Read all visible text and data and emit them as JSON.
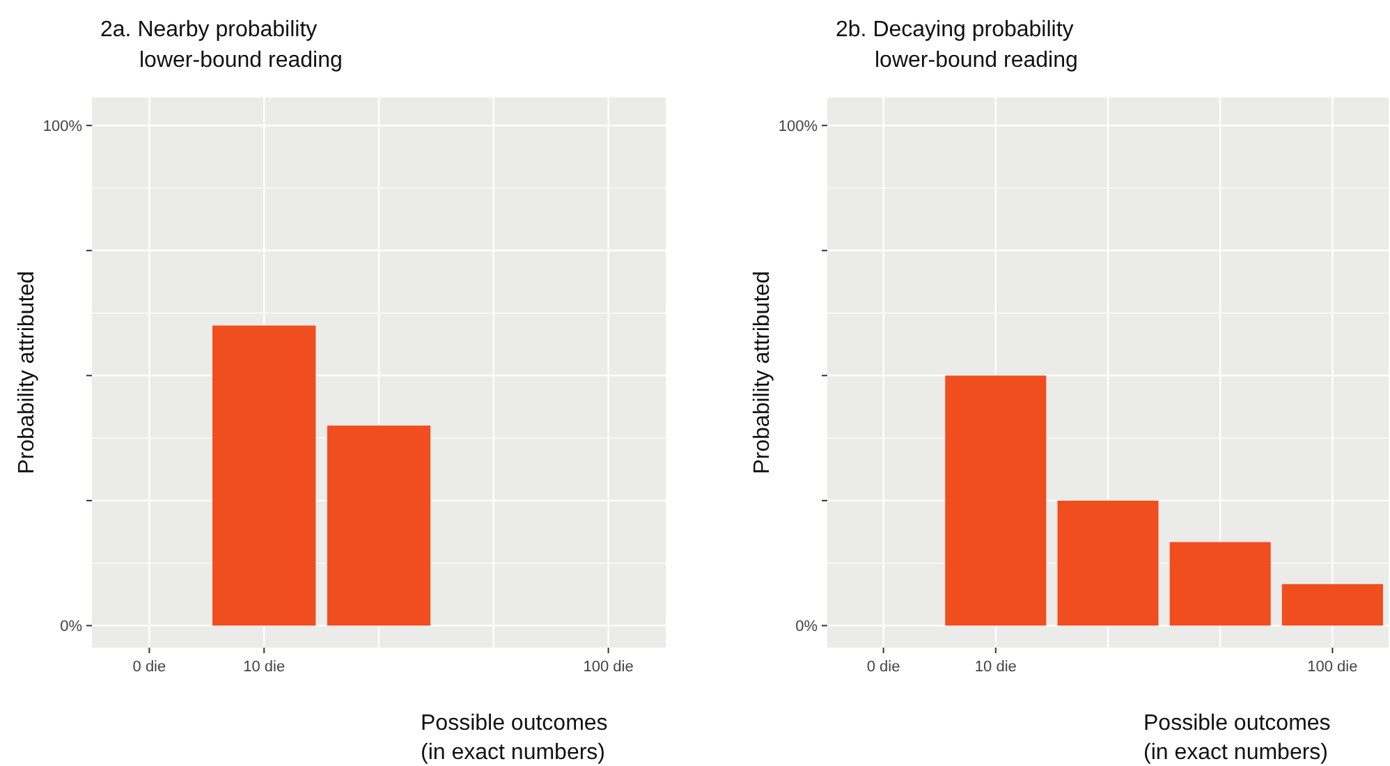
{
  "chart_data": [
    {
      "type": "bar",
      "title": "2a. Nearby probability\nlower-bound reading",
      "xlabel": "Possible outcomes\n(in exact numbers)",
      "ylabel": "Probability attributed",
      "categories": [
        "0 die",
        "10 die",
        null,
        null,
        "100 die"
      ],
      "values": [
        null,
        60,
        40,
        null,
        null
      ],
      "color": "#f04e1e",
      "ylim": [
        -4.4,
        105.6
      ],
      "yticks": [
        {
          "value": 0,
          "label": "0%"
        },
        {
          "value": 25,
          "label": null
        },
        {
          "value": 50,
          "label": null
        },
        {
          "value": 75,
          "label": null
        },
        {
          "value": 100,
          "label": "100%"
        }
      ],
      "grid": true
    },
    {
      "type": "bar",
      "title": "2b. Decaying probability\nlower-bound reading",
      "xlabel": "Possible outcomes\n(in exact numbers)",
      "ylabel": "Probability attributed",
      "categories": [
        "0 die",
        "10 die",
        null,
        null,
        "100 die"
      ],
      "values": [
        null,
        50,
        25,
        16.7,
        8.3
      ],
      "color": "#f04e1e",
      "ylim": [
        -4.4,
        105.6
      ],
      "yticks": [
        {
          "value": 0,
          "label": "0%"
        },
        {
          "value": 25,
          "label": null
        },
        {
          "value": 50,
          "label": null
        },
        {
          "value": 75,
          "label": null
        },
        {
          "value": 100,
          "label": "100%"
        }
      ],
      "grid": true
    }
  ]
}
